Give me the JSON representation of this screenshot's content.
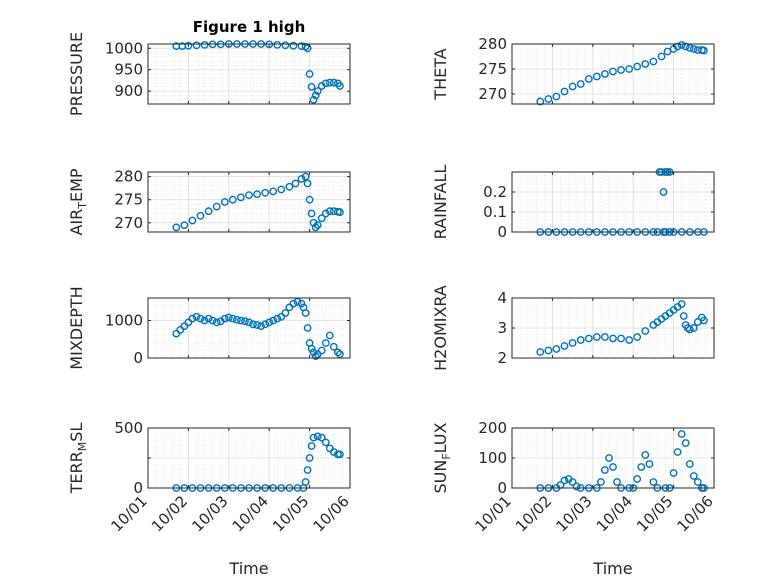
{
  "chart_data": [
    {
      "type": "scatter",
      "title": "Figure 1 high",
      "ylabel": "PRESSURE",
      "xlabel": "",
      "xlim": [
        0,
        5
      ],
      "xticks": [
        0,
        1,
        2,
        3,
        4,
        5
      ],
      "ylim": [
        870,
        1010
      ],
      "yticks": [
        900,
        950,
        1000
      ],
      "ytick_labels": [
        "900",
        "950",
        "1000"
      ],
      "grid": true,
      "minor_grid": true,
      "color": "#0072bd",
      "points": [
        [
          0.7,
          1005
        ],
        [
          0.85,
          1005
        ],
        [
          1.0,
          1006
        ],
        [
          1.2,
          1007
        ],
        [
          1.4,
          1008
        ],
        [
          1.6,
          1009
        ],
        [
          1.8,
          1009
        ],
        [
          2.0,
          1010
        ],
        [
          2.2,
          1010
        ],
        [
          2.4,
          1010
        ],
        [
          2.6,
          1010
        ],
        [
          2.8,
          1010
        ],
        [
          3.0,
          1009
        ],
        [
          3.2,
          1008
        ],
        [
          3.4,
          1007
        ],
        [
          3.6,
          1006
        ],
        [
          3.8,
          1005
        ],
        [
          3.9,
          1004
        ],
        [
          3.95,
          1000
        ],
        [
          4.0,
          940
        ],
        [
          4.05,
          910
        ],
        [
          4.1,
          880
        ],
        [
          4.15,
          890
        ],
        [
          4.2,
          900
        ],
        [
          4.3,
          912
        ],
        [
          4.4,
          918
        ],
        [
          4.5,
          920
        ],
        [
          4.6,
          920
        ],
        [
          4.7,
          918
        ],
        [
          4.75,
          912
        ]
      ]
    },
    {
      "type": "scatter",
      "title": "",
      "ylabel": "THETA",
      "xlabel": "",
      "xlim": [
        0,
        5
      ],
      "xticks": [
        0,
        1,
        2,
        3,
        4,
        5
      ],
      "ylim": [
        268,
        280
      ],
      "yticks": [
        270,
        275,
        280
      ],
      "ytick_labels": [
        "270",
        "275",
        "280"
      ],
      "grid": true,
      "minor_grid": true,
      "color": "#0072bd",
      "points": [
        [
          0.7,
          268.5
        ],
        [
          0.9,
          269
        ],
        [
          1.1,
          269.5
        ],
        [
          1.3,
          270.5
        ],
        [
          1.5,
          271.5
        ],
        [
          1.7,
          272
        ],
        [
          1.9,
          273
        ],
        [
          2.1,
          273.5
        ],
        [
          2.3,
          274
        ],
        [
          2.5,
          274.5
        ],
        [
          2.7,
          274.8
        ],
        [
          2.9,
          275
        ],
        [
          3.1,
          275.5
        ],
        [
          3.3,
          276
        ],
        [
          3.5,
          276.5
        ],
        [
          3.7,
          277.5
        ],
        [
          3.85,
          278.5
        ],
        [
          4.0,
          279
        ],
        [
          4.1,
          279.5
        ],
        [
          4.2,
          279.8
        ],
        [
          4.3,
          279.5
        ],
        [
          4.4,
          279.2
        ],
        [
          4.5,
          279
        ],
        [
          4.6,
          278.8
        ],
        [
          4.7,
          278.8
        ],
        [
          4.75,
          278.7
        ]
      ]
    },
    {
      "type": "scatter",
      "title": "",
      "ylabel": "AIR_TEMP",
      "xlabel": "",
      "xlim": [
        0,
        5
      ],
      "xticks": [
        0,
        1,
        2,
        3,
        4,
        5
      ],
      "ylim": [
        268,
        281
      ],
      "yticks": [
        270,
        275,
        280
      ],
      "ytick_labels": [
        "270",
        "275",
        "280"
      ],
      "grid": true,
      "minor_grid": true,
      "color": "#0072bd",
      "points": [
        [
          0.7,
          269
        ],
        [
          0.9,
          269.5
        ],
        [
          1.1,
          270.5
        ],
        [
          1.3,
          271.5
        ],
        [
          1.5,
          272.5
        ],
        [
          1.7,
          273.5
        ],
        [
          1.9,
          274.5
        ],
        [
          2.1,
          275
        ],
        [
          2.3,
          275.5
        ],
        [
          2.5,
          276
        ],
        [
          2.7,
          276.2
        ],
        [
          2.9,
          276.5
        ],
        [
          3.1,
          276.8
        ],
        [
          3.3,
          277.2
        ],
        [
          3.5,
          277.8
        ],
        [
          3.65,
          278.5
        ],
        [
          3.8,
          279.5
        ],
        [
          3.9,
          280
        ],
        [
          3.95,
          278.5
        ],
        [
          4.0,
          275
        ],
        [
          4.05,
          272
        ],
        [
          4.1,
          270
        ],
        [
          4.15,
          269
        ],
        [
          4.2,
          269.5
        ],
        [
          4.3,
          271
        ],
        [
          4.4,
          272
        ],
        [
          4.5,
          272.5
        ],
        [
          4.6,
          272.5
        ],
        [
          4.7,
          272.4
        ],
        [
          4.75,
          272.3
        ]
      ]
    },
    {
      "type": "scatter",
      "title": "",
      "ylabel": "RAINFALL",
      "xlabel": "",
      "xlim": [
        0,
        5
      ],
      "xticks": [
        0,
        1,
        2,
        3,
        4,
        5
      ],
      "ylim": [
        0,
        0.3
      ],
      "yticks": [
        0,
        0.1,
        0.2
      ],
      "ytick_labels": [
        "0",
        "0.1",
        "0.2"
      ],
      "grid": true,
      "minor_grid": true,
      "color": "#0072bd",
      "points": [
        [
          0.7,
          0
        ],
        [
          0.9,
          0
        ],
        [
          1.1,
          0
        ],
        [
          1.3,
          0
        ],
        [
          1.5,
          0
        ],
        [
          1.7,
          0
        ],
        [
          1.9,
          0
        ],
        [
          2.1,
          0
        ],
        [
          2.3,
          0
        ],
        [
          2.5,
          0
        ],
        [
          2.7,
          0
        ],
        [
          2.9,
          0
        ],
        [
          3.1,
          0
        ],
        [
          3.3,
          0
        ],
        [
          3.5,
          0
        ],
        [
          3.6,
          0
        ],
        [
          3.65,
          0.3
        ],
        [
          3.7,
          0.3
        ],
        [
          3.75,
          0.2
        ],
        [
          3.8,
          0.3
        ],
        [
          3.85,
          0.3
        ],
        [
          3.9,
          0.3
        ],
        [
          3.75,
          0
        ],
        [
          3.8,
          0
        ],
        [
          3.9,
          0
        ],
        [
          4.0,
          0
        ],
        [
          4.2,
          0
        ],
        [
          4.4,
          0
        ],
        [
          4.6,
          0
        ],
        [
          4.75,
          0
        ]
      ]
    },
    {
      "type": "scatter",
      "title": "",
      "ylabel": "MIXDEPTH",
      "xlabel": "",
      "xlim": [
        0,
        5
      ],
      "xticks": [
        0,
        1,
        2,
        3,
        4,
        5
      ],
      "ylim": [
        0,
        1600
      ],
      "yticks": [
        0,
        1000
      ],
      "ytick_labels": [
        "0",
        "1000"
      ],
      "grid": true,
      "minor_grid": true,
      "color": "#0072bd",
      "points": [
        [
          0.7,
          650
        ],
        [
          0.8,
          750
        ],
        [
          0.9,
          850
        ],
        [
          1.0,
          950
        ],
        [
          1.1,
          1050
        ],
        [
          1.2,
          1100
        ],
        [
          1.3,
          1050
        ],
        [
          1.4,
          1000
        ],
        [
          1.5,
          1050
        ],
        [
          1.6,
          1000
        ],
        [
          1.7,
          950
        ],
        [
          1.8,
          980
        ],
        [
          1.9,
          1050
        ],
        [
          2.0,
          1080
        ],
        [
          2.1,
          1050
        ],
        [
          2.2,
          1020
        ],
        [
          2.3,
          1000
        ],
        [
          2.4,
          980
        ],
        [
          2.5,
          950
        ],
        [
          2.6,
          900
        ],
        [
          2.7,
          880
        ],
        [
          2.8,
          850
        ],
        [
          2.9,
          900
        ],
        [
          3.0,
          950
        ],
        [
          3.1,
          1000
        ],
        [
          3.2,
          1050
        ],
        [
          3.3,
          1100
        ],
        [
          3.4,
          1200
        ],
        [
          3.5,
          1350
        ],
        [
          3.6,
          1450
        ],
        [
          3.7,
          1500
        ],
        [
          3.8,
          1450
        ],
        [
          3.85,
          1350
        ],
        [
          3.9,
          1200
        ],
        [
          3.95,
          800
        ],
        [
          4.0,
          400
        ],
        [
          4.05,
          250
        ],
        [
          4.1,
          150
        ],
        [
          4.15,
          50
        ],
        [
          4.2,
          100
        ],
        [
          4.3,
          200
        ],
        [
          4.4,
          400
        ],
        [
          4.5,
          600
        ],
        [
          4.6,
          300
        ],
        [
          4.7,
          150
        ],
        [
          4.75,
          100
        ]
      ]
    },
    {
      "type": "scatter",
      "title": "",
      "ylabel": "H2OMIXRA",
      "xlabel": "",
      "xlim": [
        0,
        5
      ],
      "xticks": [
        0,
        1,
        2,
        3,
        4,
        5
      ],
      "ylim": [
        2,
        4
      ],
      "yticks": [
        2,
        3,
        4
      ],
      "ytick_labels": [
        "2",
        "3",
        "4"
      ],
      "grid": true,
      "minor_grid": true,
      "color": "#0072bd",
      "points": [
        [
          0.7,
          2.2
        ],
        [
          0.9,
          2.25
        ],
        [
          1.1,
          2.3
        ],
        [
          1.3,
          2.4
        ],
        [
          1.5,
          2.5
        ],
        [
          1.7,
          2.6
        ],
        [
          1.9,
          2.65
        ],
        [
          2.1,
          2.7
        ],
        [
          2.3,
          2.7
        ],
        [
          2.5,
          2.65
        ],
        [
          2.7,
          2.65
        ],
        [
          2.9,
          2.6
        ],
        [
          3.1,
          2.7
        ],
        [
          3.3,
          2.9
        ],
        [
          3.5,
          3.1
        ],
        [
          3.6,
          3.2
        ],
        [
          3.7,
          3.3
        ],
        [
          3.8,
          3.4
        ],
        [
          3.9,
          3.5
        ],
        [
          4.0,
          3.6
        ],
        [
          4.1,
          3.7
        ],
        [
          4.2,
          3.8
        ],
        [
          4.25,
          3.4
        ],
        [
          4.3,
          3.1
        ],
        [
          4.35,
          3.0
        ],
        [
          4.4,
          2.95
        ],
        [
          4.5,
          3.0
        ],
        [
          4.6,
          3.2
        ],
        [
          4.7,
          3.35
        ],
        [
          4.75,
          3.25
        ]
      ]
    },
    {
      "type": "scatter",
      "title": "",
      "ylabel": "TERR_MSL",
      "xlabel": "Time",
      "xlim": [
        0,
        5
      ],
      "xticks": [
        0,
        1,
        2,
        3,
        4,
        5
      ],
      "xtick_labels": [
        "10/01",
        "10/02",
        "10/03",
        "10/04",
        "10/05",
        "10/06"
      ],
      "ylim": [
        0,
        500
      ],
      "yticks": [
        0,
        250,
        500
      ],
      "ytick_labels": [
        "0",
        "",
        "500"
      ],
      "grid": true,
      "minor_grid": true,
      "color": "#0072bd",
      "points": [
        [
          0.7,
          0
        ],
        [
          0.9,
          0
        ],
        [
          1.1,
          0
        ],
        [
          1.3,
          0
        ],
        [
          1.5,
          0
        ],
        [
          1.7,
          0
        ],
        [
          1.9,
          0
        ],
        [
          2.1,
          0
        ],
        [
          2.3,
          0
        ],
        [
          2.5,
          0
        ],
        [
          2.7,
          0
        ],
        [
          2.9,
          0
        ],
        [
          3.1,
          0
        ],
        [
          3.3,
          0
        ],
        [
          3.5,
          0
        ],
        [
          3.7,
          0
        ],
        [
          3.85,
          0
        ],
        [
          3.9,
          50
        ],
        [
          3.95,
          150
        ],
        [
          4.0,
          250
        ],
        [
          4.05,
          350
        ],
        [
          4.1,
          420
        ],
        [
          4.2,
          430
        ],
        [
          4.3,
          420
        ],
        [
          4.4,
          380
        ],
        [
          4.5,
          330
        ],
        [
          4.6,
          300
        ],
        [
          4.7,
          280
        ],
        [
          4.75,
          280
        ]
      ]
    },
    {
      "type": "scatter",
      "title": "",
      "ylabel": "SUN_FLUX",
      "xlabel": "Time",
      "xlim": [
        0,
        5
      ],
      "xticks": [
        0,
        1,
        2,
        3,
        4,
        5
      ],
      "xtick_labels": [
        "10/01",
        "10/02",
        "10/03",
        "10/04",
        "10/05",
        "10/06"
      ],
      "ylim": [
        0,
        200
      ],
      "yticks": [
        0,
        100,
        200
      ],
      "ytick_labels": [
        "0",
        "100",
        "200"
      ],
      "grid": true,
      "minor_grid": true,
      "color": "#0072bd",
      "points": [
        [
          0.7,
          0
        ],
        [
          0.9,
          0
        ],
        [
          1.1,
          0
        ],
        [
          1.2,
          10
        ],
        [
          1.3,
          25
        ],
        [
          1.4,
          30
        ],
        [
          1.5,
          20
        ],
        [
          1.6,
          5
        ],
        [
          1.7,
          0
        ],
        [
          1.9,
          0
        ],
        [
          2.1,
          0
        ],
        [
          2.2,
          20
        ],
        [
          2.3,
          60
        ],
        [
          2.4,
          100
        ],
        [
          2.5,
          70
        ],
        [
          2.6,
          20
        ],
        [
          2.7,
          0
        ],
        [
          2.9,
          0
        ],
        [
          3.0,
          0
        ],
        [
          3.1,
          30
        ],
        [
          3.2,
          70
        ],
        [
          3.3,
          110
        ],
        [
          3.4,
          80
        ],
        [
          3.5,
          20
        ],
        [
          3.6,
          0
        ],
        [
          3.8,
          0
        ],
        [
          3.9,
          0
        ],
        [
          4.0,
          50
        ],
        [
          4.1,
          120
        ],
        [
          4.2,
          180
        ],
        [
          4.3,
          150
        ],
        [
          4.4,
          80
        ],
        [
          4.5,
          40
        ],
        [
          4.6,
          20
        ],
        [
          4.7,
          0
        ],
        [
          4.75,
          0
        ]
      ]
    }
  ]
}
